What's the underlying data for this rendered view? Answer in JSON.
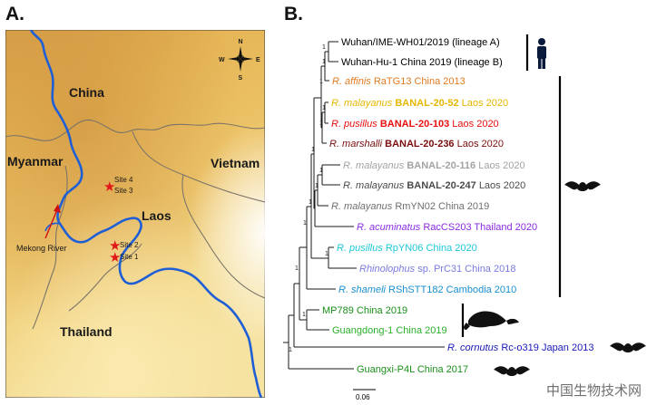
{
  "panels": {
    "a": "A.",
    "b": "B."
  },
  "map": {
    "country_labels": [
      "China",
      "Myanmar",
      "Vietnam",
      "Laos",
      "Thailand"
    ],
    "river_label": "Mekong River",
    "sites": [
      "Site 4",
      "Site 3",
      "Site 2",
      "Site 1"
    ],
    "compass": {
      "n": "N",
      "s": "S",
      "e": "E",
      "w": "W"
    },
    "colors": {
      "river": "#1f5fd6",
      "border": "#7a7468",
      "site_star": "#e01818",
      "arrow": "#d01010"
    }
  },
  "tree": {
    "taxa": [
      {
        "species": "",
        "isolate": "Wuhan/IME-WH01/2019 (lineage A)",
        "color": "#000000"
      },
      {
        "species": "",
        "isolate": "Wuhan-Hu-1 China 2019 (lineage B)",
        "color": "#000000"
      },
      {
        "species": "R. affinis",
        "isolate": "RaTG13 China 2013",
        "color": "#e07b22"
      },
      {
        "species": "R. malayanus",
        "strain": "BANAL-20-52",
        "place": "Laos 2020",
        "color": "#e6b700"
      },
      {
        "species": "R. pusillus",
        "strain": "BANAL-20-103",
        "place": "Laos 2020",
        "color": "#e81010"
      },
      {
        "species": "R. marshalli",
        "strain": "BANAL-20-236",
        "place": "Laos 2020",
        "color": "#7a0e0e"
      },
      {
        "species": "R. malayanus",
        "strain": "BANAL-20-116",
        "place": "Laos 2020",
        "color": "#a3a3a3"
      },
      {
        "species": "R. malayanus",
        "strain": "BANAL-20-247",
        "place": "Laos 2020",
        "color": "#4a4a4a"
      },
      {
        "species": "R. malayanus",
        "isolate": "RmYN02 China 2019",
        "color": "#6f6f6f"
      },
      {
        "species": "R. acuminatus",
        "isolate": "RacCS203 Thailand 2020",
        "color": "#8a2be2"
      },
      {
        "species": "R. pusillus",
        "isolate": "RpYN06 China 2020",
        "color": "#1ec8d8"
      },
      {
        "species": "Rhinolophus",
        "isolate": "sp. PrC31 China 2018",
        "color": "#7b7be0"
      },
      {
        "species": "R. shameli",
        "isolate": "RShSTT182 Cambodia 2010",
        "color": "#1a8fd0"
      },
      {
        "species": "",
        "isolate": "MP789 China 2019",
        "color": "#1a8f1a"
      },
      {
        "species": "",
        "isolate": "Guangdong-1 China 2019",
        "color": "#2bb02b"
      },
      {
        "species": "R. cornutus",
        "isolate": "Rc-o319 Japan 2013",
        "color": "#1a1ab8"
      },
      {
        "species": "",
        "isolate": "Guangxi-P4L China 2017",
        "color": "#1a8f1a"
      }
    ],
    "support_label": "1",
    "scale_label": "0.06"
  },
  "watermark": "中国生物技术网"
}
